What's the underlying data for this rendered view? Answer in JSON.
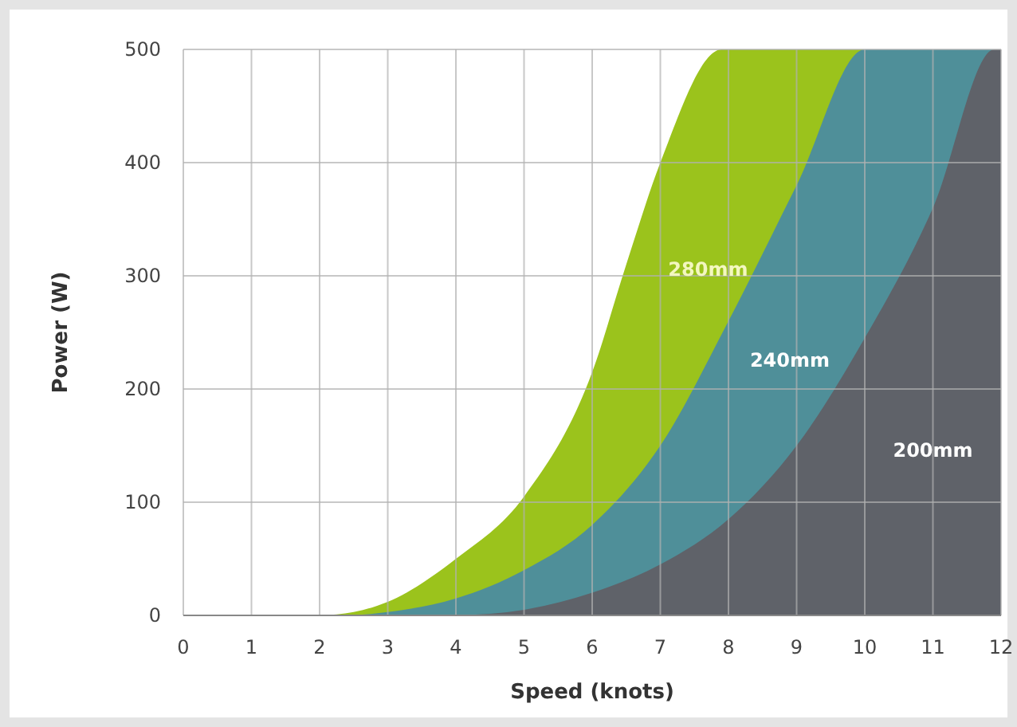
{
  "chart_data": {
    "type": "area",
    "xlabel": "Speed (knots)",
    "ylabel": "Power (W)",
    "xlim": [
      0,
      12
    ],
    "ylim": [
      0,
      500
    ],
    "xticks": [
      0,
      1,
      2,
      3,
      4,
      5,
      6,
      7,
      8,
      9,
      10,
      11,
      12
    ],
    "yticks": [
      0,
      100,
      200,
      300,
      400,
      500
    ],
    "grid": true,
    "legend": false,
    "stacked": false,
    "series": [
      {
        "name": "280mm",
        "color": "#9bc31c",
        "x": [
          2,
          2.5,
          3,
          4,
          5,
          6,
          6.5,
          7,
          7.9,
          12
        ],
        "values": [
          0,
          3,
          12,
          50,
          105,
          215,
          310,
          400,
          500,
          500
        ]
      },
      {
        "name": "240mm",
        "color": "#4f8f99",
        "x": [
          2.5,
          3,
          4,
          5,
          6,
          7,
          8,
          9,
          10,
          12
        ],
        "values": [
          0,
          3,
          15,
          40,
          80,
          150,
          260,
          380,
          500,
          500
        ]
      },
      {
        "name": "200mm",
        "color": "#5f6269",
        "x": [
          4,
          5,
          6,
          7,
          8,
          9,
          10,
          11,
          11.9,
          12
        ],
        "values": [
          0,
          5,
          20,
          45,
          85,
          150,
          245,
          360,
          500,
          500
        ]
      }
    ]
  }
}
